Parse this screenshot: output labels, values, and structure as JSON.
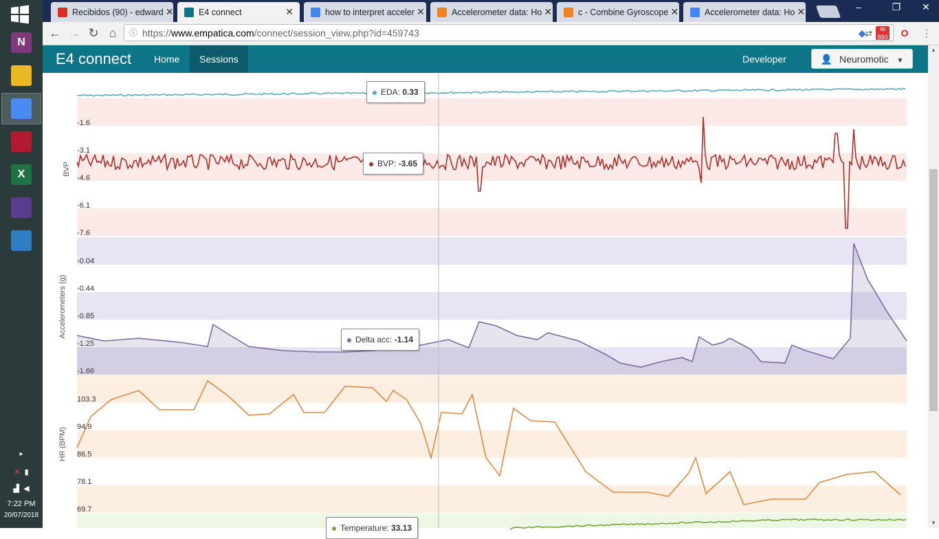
{
  "taskbar": {
    "apps": [
      {
        "name": "onenote",
        "letter": "N",
        "color": "#80397b"
      },
      {
        "name": "file-explorer",
        "letter": "",
        "color": "#e8b923"
      },
      {
        "name": "chrome",
        "letter": "",
        "color": "#4a8af4"
      },
      {
        "name": "mendeley",
        "letter": "",
        "color": "#b01c2e"
      },
      {
        "name": "excel",
        "letter": "X",
        "color": "#1f7244"
      },
      {
        "name": "winrar",
        "letter": "",
        "color": "#5a3c8c"
      },
      {
        "name": "photos",
        "letter": "",
        "color": "#2d7fc1"
      }
    ],
    "time": "7:22 PM",
    "date": "20/07/2018"
  },
  "browser": {
    "tabs": [
      {
        "title": "Recibidos (90) - edward",
        "fav_color": "#d93025"
      },
      {
        "title": "E4 connect",
        "fav_color": "#0e7488"
      },
      {
        "title": "how to interpret acceler",
        "fav_color": "#4285f4"
      },
      {
        "title": "Accelerometer data: Ho",
        "fav_color": "#f48024"
      },
      {
        "title": "c - Combine Gyroscope",
        "fav_color": "#f48024"
      },
      {
        "title": "Accelerometer data: Ho",
        "fav_color": "#4285f4"
      }
    ],
    "url_prefix": "https://",
    "url_host": "www.empatica.com",
    "url_path": "/connect/session_view.php?id=459743",
    "badge": "890"
  },
  "site": {
    "brand": "E4 connect",
    "nav": [
      "Home",
      "Sessions"
    ],
    "developer": "Developer",
    "user": "Neuromotic"
  },
  "chart_data": [
    {
      "type": "line",
      "name": "EDA",
      "ylabel": "",
      "color": "#5aa9c2",
      "tooltip": {
        "label": "EDA",
        "value": "0.33"
      }
    },
    {
      "type": "line",
      "name": "BVP",
      "ylabel": "BVP",
      "color": "#a8302a",
      "ticks": [
        "-1.6",
        "-3.1",
        "-4.6",
        "-6.1",
        "-7.6"
      ],
      "tooltip": {
        "label": "BVP",
        "value": "-3.65"
      }
    },
    {
      "type": "area",
      "name": "Delta acc",
      "ylabel": "Accelerometers (g)",
      "color": "#7b6aa0",
      "ticks": [
        "-0.04",
        "-0.44",
        "-0.85",
        "-1.25",
        "-1.66"
      ],
      "tooltip": {
        "label": "Delta acc",
        "value": "-1.14"
      }
    },
    {
      "type": "line",
      "name": "HR",
      "ylabel": "HR (BPM)",
      "color": "#e08a3c",
      "ticks": [
        "103.3",
        "94.9",
        "86.5",
        "78.1",
        "69.7"
      ]
    },
    {
      "type": "line",
      "name": "Temperature",
      "ylabel": "",
      "color": "#7aa33a",
      "tooltip": {
        "label": "Temperature",
        "value": "33.13"
      }
    }
  ]
}
